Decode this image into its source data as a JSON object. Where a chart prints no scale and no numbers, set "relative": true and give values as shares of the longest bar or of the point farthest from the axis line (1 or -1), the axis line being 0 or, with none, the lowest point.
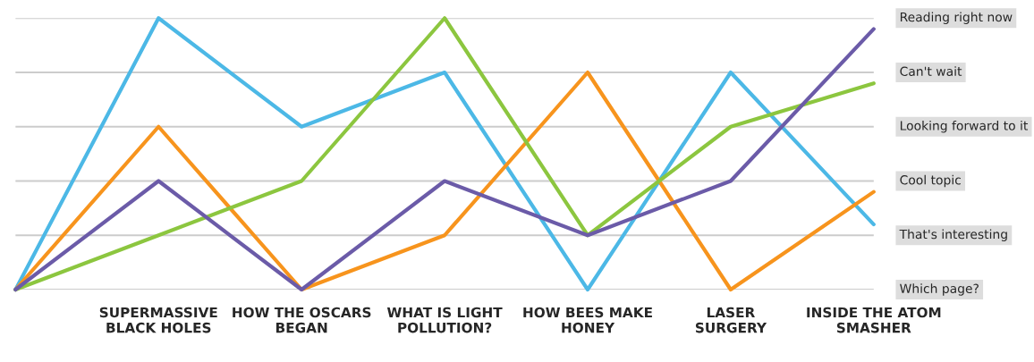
{
  "chart_data": {
    "type": "line",
    "relative": true,
    "categories": [
      null,
      "SUPERMASSIVE\nBLACK HOLES",
      "HOW THE OSCARS\nBEGAN",
      "WHAT IS LIGHT\nPOLLUTION?",
      "HOW BEES MAKE\nHONEY",
      "LASER\nSURGERY",
      "INSIDE THE ATOM\nSMASHER"
    ],
    "series": [
      {
        "color": "#4cb8e6",
        "values": [
          0,
          1,
          0.6,
          0.8,
          0,
          0.8,
          0.24
        ]
      },
      {
        "color": "#f7941d",
        "values": [
          0,
          0.6,
          0,
          0.2,
          0.8,
          0,
          0.36
        ]
      },
      {
        "color": "#8cc63f",
        "values": [
          0,
          0.2,
          0.4,
          1,
          0.2,
          0.6,
          0.76
        ]
      },
      {
        "color": "#6b5ba8",
        "values": [
          0,
          0.4,
          0,
          0.4,
          0.2,
          0.4,
          0.96
        ]
      }
    ],
    "ref_lines": [
      {
        "axis": "y",
        "value": 0,
        "label": "Which page?",
        "color": "#cccccc"
      },
      {
        "axis": "y",
        "value": 0.2,
        "label": "That's interesting",
        "color": "#cccccc"
      },
      {
        "axis": "y",
        "value": 0.4,
        "label": "Cool topic",
        "color": "#cccccc"
      },
      {
        "axis": "y",
        "value": 0.6,
        "label": "Looking forward to it",
        "color": "#cccccc"
      },
      {
        "axis": "y",
        "value": 0.8,
        "label": "Can't wait",
        "color": "#cccccc"
      },
      {
        "axis": "y",
        "value": 1,
        "label": "Reading right now",
        "color": "#cccccc"
      }
    ],
    "legend": false,
    "marker": "none",
    "line_style": "solid"
  }
}
